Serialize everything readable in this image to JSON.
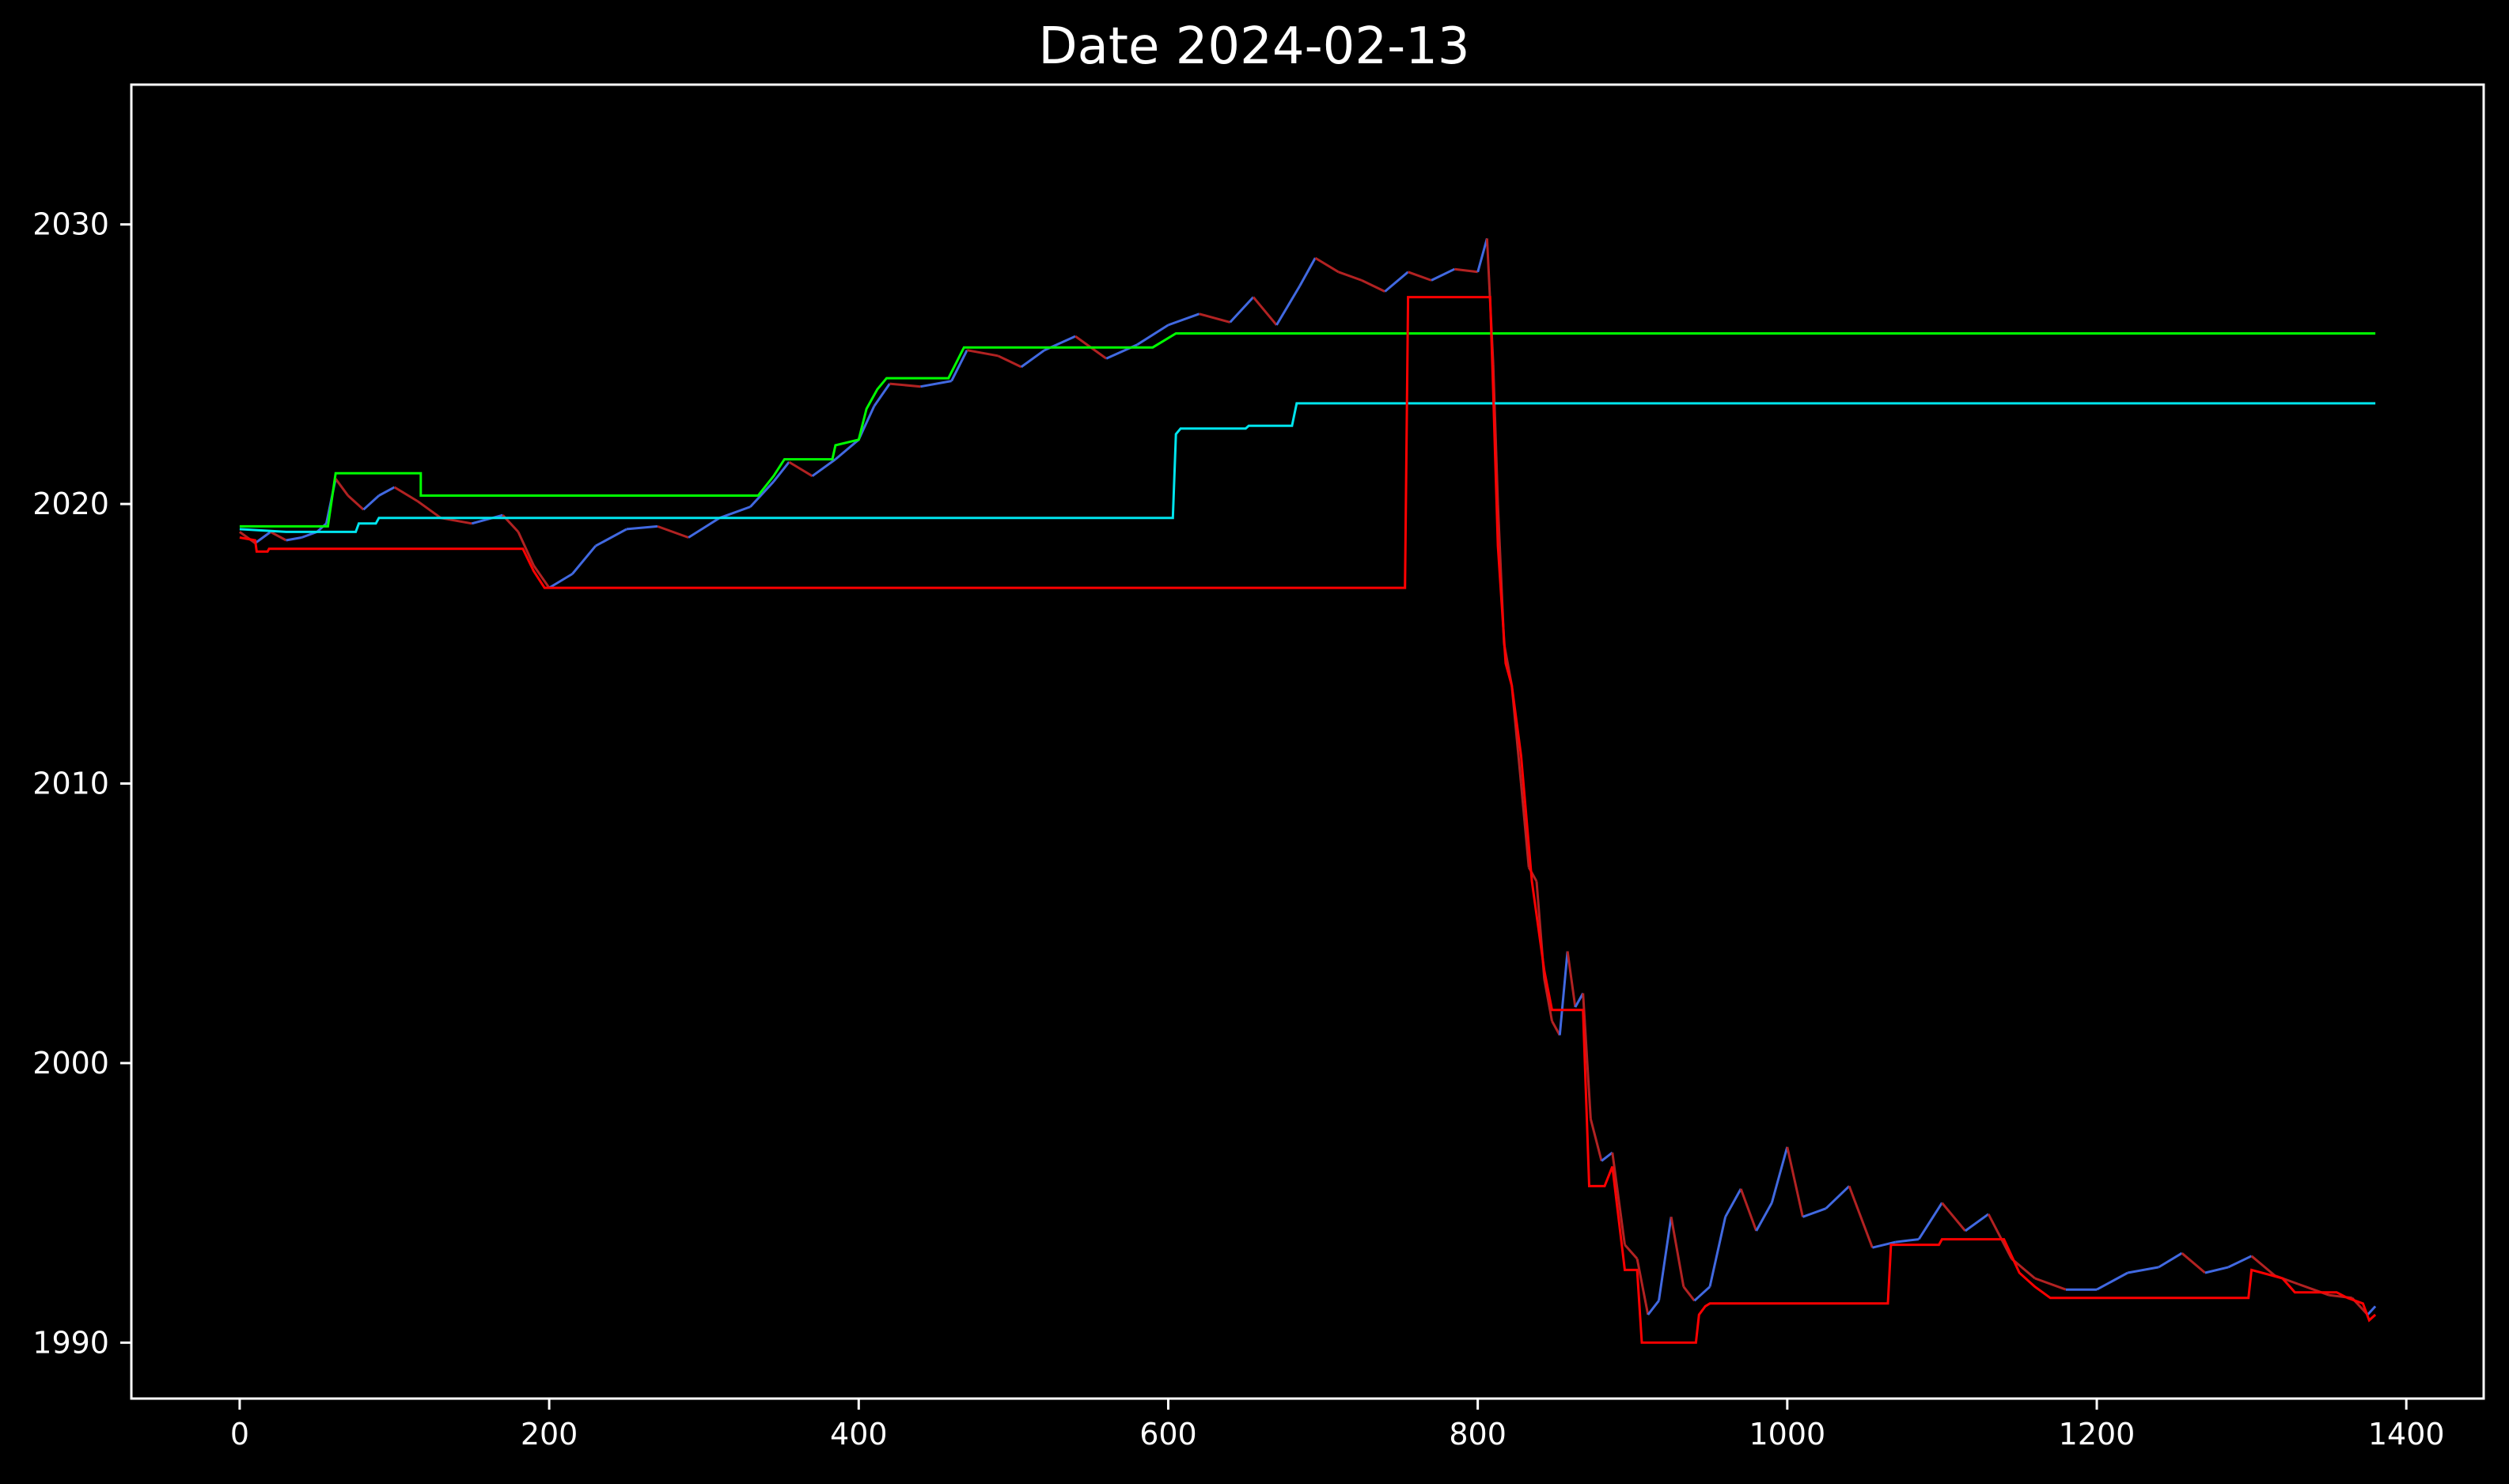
{
  "chart_data": {
    "type": "line",
    "title": "Date 2024-02-13",
    "xlabel": "",
    "ylabel": "",
    "xlim": [
      -70,
      1450
    ],
    "ylim": [
      1988,
      2035
    ],
    "x_ticks": [
      0,
      200,
      400,
      600,
      800,
      1000,
      1200,
      1400
    ],
    "y_ticks": [
      1990,
      2000,
      2010,
      2020,
      2030
    ],
    "grid": false,
    "legend": "none",
    "colors": {
      "background": "#000000",
      "axes": "#ffffff",
      "price_up": "#4169e1",
      "price_down": "#b22222",
      "green_line": "#00ff00",
      "cyan_line": "#00e5ee",
      "red_line": "#ff0000"
    },
    "series": [
      {
        "role": "price",
        "color": "#4169e1",
        "down_color": "#b22222",
        "points": [
          [
            0,
            2019.0
          ],
          [
            10,
            2018.6
          ],
          [
            20,
            2019.0
          ],
          [
            30,
            2018.7
          ],
          [
            40,
            2018.8
          ],
          [
            50,
            2019.0
          ],
          [
            56,
            2019.3
          ],
          [
            62,
            2020.9
          ],
          [
            70,
            2020.3
          ],
          [
            80,
            2019.8
          ],
          [
            90,
            2020.3
          ],
          [
            100,
            2020.6
          ],
          [
            115,
            2020.1
          ],
          [
            130,
            2019.5
          ],
          [
            150,
            2019.3
          ],
          [
            170,
            2019.6
          ],
          [
            180,
            2019.0
          ],
          [
            190,
            2017.8
          ],
          [
            200,
            2017.0
          ],
          [
            215,
            2017.5
          ],
          [
            230,
            2018.5
          ],
          [
            250,
            2019.1
          ],
          [
            270,
            2019.2
          ],
          [
            290,
            2018.8
          ],
          [
            310,
            2019.5
          ],
          [
            330,
            2019.9
          ],
          [
            345,
            2020.8
          ],
          [
            355,
            2021.5
          ],
          [
            370,
            2021.0
          ],
          [
            385,
            2021.6
          ],
          [
            400,
            2022.3
          ],
          [
            410,
            2023.5
          ],
          [
            420,
            2024.3
          ],
          [
            440,
            2024.2
          ],
          [
            460,
            2024.4
          ],
          [
            470,
            2025.5
          ],
          [
            490,
            2025.3
          ],
          [
            505,
            2024.9
          ],
          [
            520,
            2025.5
          ],
          [
            540,
            2026.0
          ],
          [
            560,
            2025.2
          ],
          [
            580,
            2025.7
          ],
          [
            600,
            2026.4
          ],
          [
            620,
            2026.8
          ],
          [
            640,
            2026.5
          ],
          [
            655,
            2027.4
          ],
          [
            670,
            2026.4
          ],
          [
            685,
            2027.8
          ],
          [
            695,
            2028.8
          ],
          [
            710,
            2028.3
          ],
          [
            725,
            2028.0
          ],
          [
            740,
            2027.6
          ],
          [
            755,
            2028.3
          ],
          [
            770,
            2028.0
          ],
          [
            785,
            2028.4
          ],
          [
            800,
            2028.3
          ],
          [
            806,
            2029.5
          ],
          [
            810,
            2025.0
          ],
          [
            813,
            2020.0
          ],
          [
            817,
            2015.0
          ],
          [
            822,
            2013.5
          ],
          [
            828,
            2010.0
          ],
          [
            833,
            2007.0
          ],
          [
            838,
            2006.5
          ],
          [
            843,
            2003.0
          ],
          [
            848,
            2001.5
          ],
          [
            853,
            2001.0
          ],
          [
            858,
            2004.0
          ],
          [
            863,
            2002.0
          ],
          [
            868,
            2002.5
          ],
          [
            873,
            1998.0
          ],
          [
            880,
            1996.5
          ],
          [
            887,
            1996.8
          ],
          [
            895,
            1993.5
          ],
          [
            903,
            1993.0
          ],
          [
            910,
            1991.0
          ],
          [
            917,
            1991.5
          ],
          [
            925,
            1994.5
          ],
          [
            933,
            1992.0
          ],
          [
            940,
            1991.5
          ],
          [
            950,
            1992.0
          ],
          [
            960,
            1994.5
          ],
          [
            970,
            1995.5
          ],
          [
            980,
            1994.0
          ],
          [
            990,
            1995.0
          ],
          [
            1000,
            1997.0
          ],
          [
            1010,
            1994.5
          ],
          [
            1025,
            1994.8
          ],
          [
            1040,
            1995.6
          ],
          [
            1055,
            1993.4
          ],
          [
            1070,
            1993.6
          ],
          [
            1085,
            1993.7
          ],
          [
            1100,
            1995.0
          ],
          [
            1115,
            1994.0
          ],
          [
            1130,
            1994.6
          ],
          [
            1145,
            1993.0
          ],
          [
            1160,
            1992.3
          ],
          [
            1180,
            1991.9
          ],
          [
            1200,
            1991.9
          ],
          [
            1220,
            1992.5
          ],
          [
            1240,
            1992.7
          ],
          [
            1255,
            1993.2
          ],
          [
            1270,
            1992.5
          ],
          [
            1285,
            1992.7
          ],
          [
            1300,
            1993.1
          ],
          [
            1315,
            1992.4
          ],
          [
            1330,
            1992.1
          ],
          [
            1350,
            1991.7
          ],
          [
            1365,
            1991.6
          ],
          [
            1375,
            1991.0
          ],
          [
            1380,
            1991.3
          ]
        ]
      },
      {
        "role": "upper-line",
        "color": "#00ff00",
        "points": [
          [
            0,
            2019.2
          ],
          [
            57,
            2019.2
          ],
          [
            62,
            2021.1
          ],
          [
            117,
            2021.1
          ],
          [
            117,
            2020.3
          ],
          [
            335,
            2020.3
          ],
          [
            345,
            2021.0
          ],
          [
            352,
            2021.6
          ],
          [
            383,
            2021.6
          ],
          [
            385,
            2022.1
          ],
          [
            400,
            2022.3
          ],
          [
            405,
            2023.4
          ],
          [
            412,
            2024.1
          ],
          [
            418,
            2024.5
          ],
          [
            458,
            2024.5
          ],
          [
            468,
            2025.6
          ],
          [
            590,
            2025.6
          ],
          [
            605,
            2026.1
          ],
          [
            1380,
            2026.1
          ]
        ]
      },
      {
        "role": "middle-line",
        "color": "#00e5ee",
        "points": [
          [
            0,
            2019.1
          ],
          [
            30,
            2019.0
          ],
          [
            75,
            2019.0
          ],
          [
            77,
            2019.3
          ],
          [
            88,
            2019.3
          ],
          [
            90,
            2019.5
          ],
          [
            603,
            2019.5
          ],
          [
            605,
            2022.5
          ],
          [
            608,
            2022.7
          ],
          [
            650,
            2022.7
          ],
          [
            652,
            2022.8
          ],
          [
            680,
            2022.8
          ],
          [
            683,
            2023.6
          ],
          [
            1380,
            2023.6
          ]
        ]
      },
      {
        "role": "lower-line",
        "color": "#ff0000",
        "points": [
          [
            0,
            2018.8
          ],
          [
            10,
            2018.7
          ],
          [
            11,
            2018.3
          ],
          [
            18,
            2018.3
          ],
          [
            19,
            2018.4
          ],
          [
            183,
            2018.4
          ],
          [
            190,
            2017.6
          ],
          [
            197,
            2017.0
          ],
          [
            753,
            2017.0
          ],
          [
            755,
            2027.4
          ],
          [
            808,
            2027.4
          ],
          [
            810,
            2024.0
          ],
          [
            813,
            2018.5
          ],
          [
            818,
            2014.3
          ],
          [
            822,
            2013.5
          ],
          [
            828,
            2011.0
          ],
          [
            835,
            2006.5
          ],
          [
            843,
            2003.3
          ],
          [
            848,
            2001.9
          ],
          [
            868,
            2001.9
          ],
          [
            872,
            1995.6
          ],
          [
            882,
            1995.6
          ],
          [
            887,
            1996.3
          ],
          [
            895,
            1992.6
          ],
          [
            903,
            1992.6
          ],
          [
            906,
            1990.0
          ],
          [
            941,
            1990.0
          ],
          [
            943,
            1991.0
          ],
          [
            947,
            1991.3
          ],
          [
            950,
            1991.4
          ],
          [
            1065,
            1991.4
          ],
          [
            1067,
            1993.5
          ],
          [
            1098,
            1993.5
          ],
          [
            1100,
            1993.7
          ],
          [
            1140,
            1993.7
          ],
          [
            1150,
            1992.5
          ],
          [
            1160,
            1992.0
          ],
          [
            1170,
            1991.6
          ],
          [
            1298,
            1991.6
          ],
          [
            1300,
            1992.6
          ],
          [
            1320,
            1992.3
          ],
          [
            1328,
            1991.8
          ],
          [
            1355,
            1991.8
          ],
          [
            1362,
            1991.6
          ],
          [
            1372,
            1991.4
          ],
          [
            1376,
            1990.8
          ],
          [
            1380,
            1991.0
          ]
        ]
      }
    ]
  }
}
